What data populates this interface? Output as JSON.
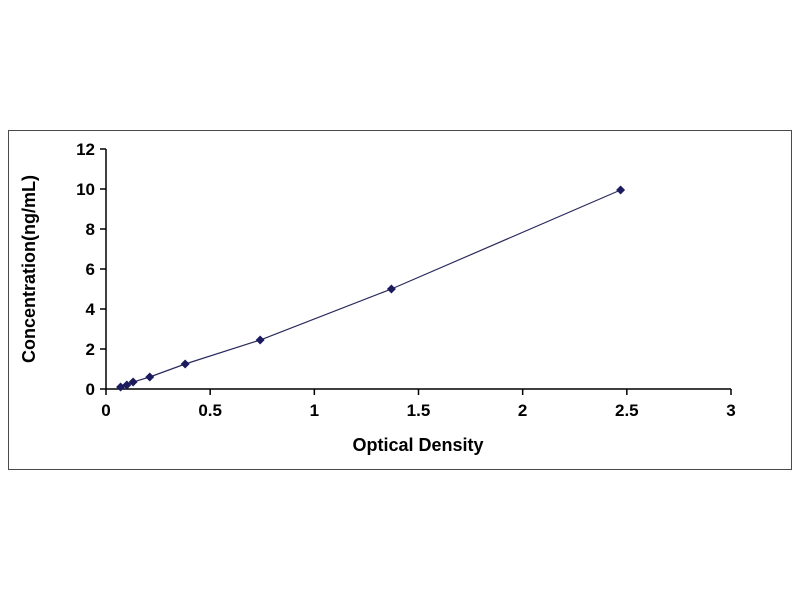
{
  "chart_data": {
    "type": "line",
    "title": "",
    "xlabel": "Optical Density",
    "ylabel": "Concentration(ng/mL)",
    "x": [
      0.07,
      0.1,
      0.13,
      0.21,
      0.38,
      0.74,
      1.37,
      2.47
    ],
    "y": [
      0.1,
      0.2,
      0.35,
      0.6,
      1.25,
      2.45,
      5.0,
      9.95
    ],
    "xlim": [
      0,
      3
    ],
    "ylim": [
      0,
      12
    ],
    "xticks": [
      0,
      0.5,
      1,
      1.5,
      2,
      2.5,
      3
    ],
    "yticks": [
      0,
      2,
      4,
      6,
      8,
      10,
      12
    ],
    "marker": "diamond",
    "line_color": "#2a2a5e",
    "marker_color": "#1b1b5e",
    "axis_color": "#000000",
    "grid": false,
    "legend": null
  }
}
